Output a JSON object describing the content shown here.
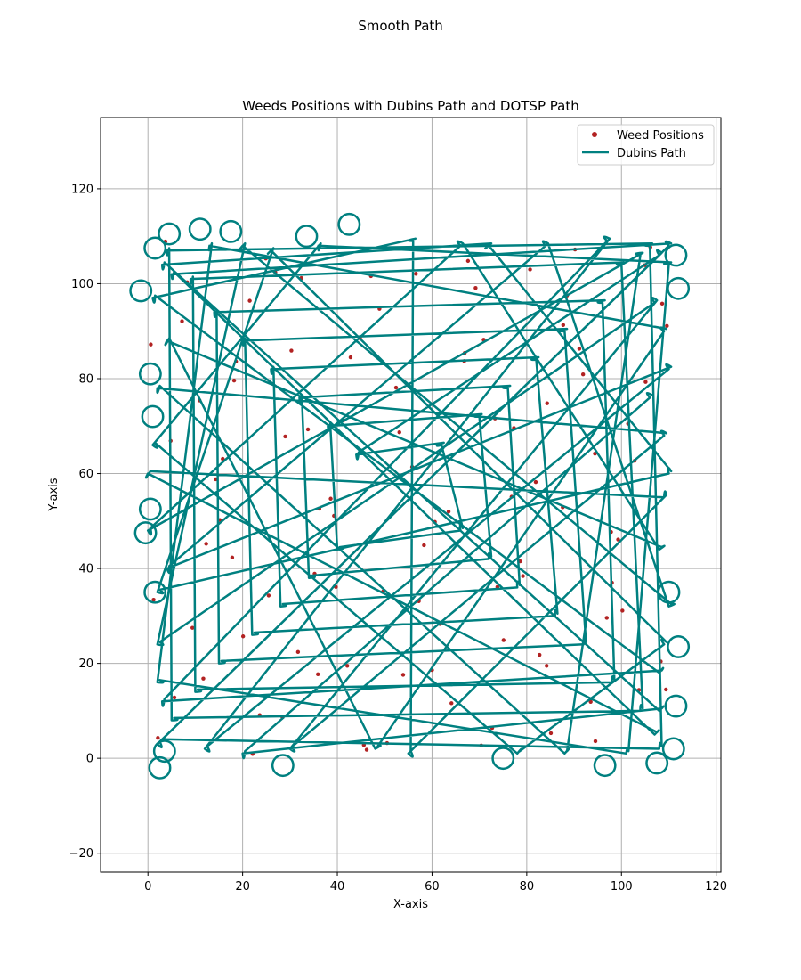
{
  "figure": {
    "suptitle": "Smooth Path"
  },
  "chart_data": {
    "type": "scatter",
    "title": "Weeds Positions with Dubins Path and DOTSP Path",
    "xlabel": "X-axis",
    "ylabel": "Y-axis",
    "xlim": [
      -10,
      121
    ],
    "ylim": [
      -24,
      135
    ],
    "xticks": [
      0,
      20,
      40,
      60,
      80,
      100,
      120
    ],
    "yticks": [
      -20,
      0,
      20,
      40,
      60,
      80,
      100,
      120
    ],
    "xtick_labels": [
      "0",
      "20",
      "40",
      "60",
      "80",
      "100",
      "120"
    ],
    "ytick_labels": [
      "−20",
      "0",
      "20",
      "40",
      "60",
      "80",
      "100",
      "120"
    ],
    "grid": true,
    "legend": {
      "placement": "top-right",
      "entries": [
        "Weed Positions",
        "Dubins Path"
      ]
    },
    "colors": {
      "weed": "#b22222",
      "path": "#008080",
      "grid": "#b0b0b0"
    },
    "series": [
      {
        "name": "Weed Positions",
        "kind": "scatter",
        "region": {
          "x": [
            0,
            110
          ],
          "y": [
            0,
            110
          ]
        },
        "points": [
          [
            2.1,
            4.3
          ],
          [
            5.6,
            12.8
          ],
          [
            9.4,
            27.5
          ],
          [
            12.3,
            45.2
          ],
          [
            15.8,
            63.1
          ],
          [
            18.2,
            79.6
          ],
          [
            21.5,
            96.4
          ],
          [
            24.9,
            105.3
          ],
          [
            28.4,
            8.7
          ],
          [
            31.7,
            22.4
          ],
          [
            35.2,
            38.9
          ],
          [
            38.6,
            54.7
          ],
          [
            41.3,
            71.2
          ],
          [
            44.8,
            88.5
          ],
          [
            47.1,
            101.6
          ],
          [
            50.5,
            3.2
          ],
          [
            53.9,
            17.6
          ],
          [
            57.2,
            33.1
          ],
          [
            60.6,
            49.8
          ],
          [
            63.4,
            66.3
          ],
          [
            66.8,
            83.7
          ],
          [
            69.2,
            99.1
          ],
          [
            72.7,
            6.4
          ],
          [
            75.1,
            24.9
          ],
          [
            78.6,
            41.5
          ],
          [
            81.9,
            58.2
          ],
          [
            84.3,
            74.8
          ],
          [
            87.7,
            91.3
          ],
          [
            90.2,
            107.2
          ],
          [
            93.5,
            11.9
          ],
          [
            96.9,
            29.6
          ],
          [
            99.3,
            46.1
          ],
          [
            102.8,
            62.7
          ],
          [
            105.1,
            79.3
          ],
          [
            108.6,
            95.8
          ],
          [
            109.4,
            14.5
          ],
          [
            3.7,
            108.9
          ],
          [
            7.2,
            92.1
          ],
          [
            10.9,
            75.4
          ],
          [
            14.3,
            58.8
          ],
          [
            17.8,
            42.3
          ],
          [
            20.1,
            25.7
          ],
          [
            23.6,
            9.1
          ],
          [
            26.9,
            102.4
          ],
          [
            30.3,
            85.9
          ],
          [
            33.8,
            69.3
          ],
          [
            36.2,
            52.6
          ],
          [
            39.7,
            36.1
          ],
          [
            42.1,
            19.5
          ],
          [
            45.6,
            2.8
          ],
          [
            48.9,
            94.7
          ],
          [
            52.4,
            78.1
          ],
          [
            55.8,
            61.4
          ],
          [
            58.3,
            44.9
          ],
          [
            61.7,
            28.3
          ],
          [
            64.1,
            11.6
          ],
          [
            67.6,
            104.8
          ],
          [
            70.9,
            88.2
          ],
          [
            73.3,
            71.6
          ],
          [
            76.8,
            55.1
          ],
          [
            79.2,
            38.4
          ],
          [
            82.7,
            21.8
          ],
          [
            85.1,
            5.3
          ],
          [
            88.5,
            97.5
          ],
          [
            91.9,
            80.9
          ],
          [
            94.4,
            64.2
          ],
          [
            97.8,
            47.7
          ],
          [
            100.2,
            31.1
          ],
          [
            103.7,
            14.4
          ],
          [
            106.1,
            107.7
          ],
          [
            109.6,
            91.1
          ],
          [
            1.2,
            33.4
          ],
          [
            4.8,
            66.9
          ],
          [
            8.3,
            100.3
          ],
          [
            11.7,
            16.8
          ],
          [
            15.2,
            50.2
          ],
          [
            18.6,
            83.6
          ],
          [
            22.1,
            0.9
          ],
          [
            25.5,
            34.3
          ],
          [
            29.0,
            67.8
          ],
          [
            32.4,
            101.2
          ],
          [
            35.9,
            17.7
          ],
          [
            39.3,
            51.1
          ],
          [
            42.8,
            84.5
          ],
          [
            46.2,
            1.8
          ],
          [
            49.7,
            35.2
          ],
          [
            53.1,
            68.7
          ],
          [
            56.6,
            102.1
          ],
          [
            60.0,
            18.6
          ],
          [
            63.5,
            52.0
          ],
          [
            66.9,
            85.4
          ],
          [
            70.4,
            2.7
          ],
          [
            73.8,
            36.1
          ],
          [
            77.3,
            69.6
          ],
          [
            80.7,
            103.0
          ],
          [
            84.2,
            19.5
          ],
          [
            87.6,
            52.9
          ],
          [
            91.1,
            86.3
          ],
          [
            94.5,
            3.6
          ],
          [
            98.0,
            37.0
          ],
          [
            101.4,
            70.5
          ],
          [
            104.9,
            103.9
          ],
          [
            108.3,
            20.4
          ],
          [
            0.6,
            87.2
          ]
        ]
      },
      {
        "name": "Dubins Path",
        "kind": "line",
        "turning_radius": 2.2,
        "waypoints": [
          [
            3,
            4
          ],
          [
            108,
            2
          ],
          [
            106,
            108
          ],
          [
            4,
            107
          ],
          [
            5,
            8
          ],
          [
            104,
            10
          ],
          [
            100,
            104
          ],
          [
            9,
            101
          ],
          [
            10,
            14
          ],
          [
            98,
            16
          ],
          [
            96,
            96
          ],
          [
            14,
            94
          ],
          [
            15,
            20
          ],
          [
            92,
            24
          ],
          [
            88,
            90
          ],
          [
            20,
            88
          ],
          [
            22,
            26
          ],
          [
            86,
            30
          ],
          [
            82,
            84
          ],
          [
            26,
            82
          ],
          [
            28,
            32
          ],
          [
            78,
            36
          ],
          [
            76,
            78
          ],
          [
            32,
            76
          ],
          [
            34,
            38
          ],
          [
            72,
            42
          ],
          [
            70,
            72
          ],
          [
            38,
            70
          ],
          [
            40,
            44
          ],
          [
            66,
            48
          ],
          [
            62,
            66
          ],
          [
            44,
            64
          ],
          [
            108,
            106
          ],
          [
            2,
            3
          ],
          [
            110,
            108
          ],
          [
            5,
            102
          ],
          [
            107,
            5
          ],
          [
            0,
            60
          ],
          [
            109,
            55
          ],
          [
            55,
            1
          ],
          [
            56,
            109
          ],
          [
            1,
            97
          ],
          [
            108,
            18
          ],
          [
            3,
            12
          ],
          [
            97,
            109
          ],
          [
            12,
            2
          ],
          [
            110,
            82
          ],
          [
            4,
            40
          ],
          [
            84,
            108
          ],
          [
            110,
            32
          ],
          [
            20,
            108
          ],
          [
            2,
            24
          ],
          [
            107,
            96
          ],
          [
            30,
            2
          ],
          [
            109,
            68
          ],
          [
            2,
            78
          ],
          [
            88,
            1
          ],
          [
            104,
            106
          ],
          [
            0,
            48
          ],
          [
            66,
            108
          ],
          [
            108,
            44
          ],
          [
            4,
            88
          ],
          [
            48,
            2
          ],
          [
            109,
            90
          ],
          [
            13,
            108
          ],
          [
            2,
            16
          ],
          [
            101,
            1
          ],
          [
            110,
            104
          ],
          [
            36,
            108
          ],
          [
            1,
            66
          ],
          [
            78,
            1
          ],
          [
            109,
            24
          ],
          [
            26,
            107
          ],
          [
            2,
            35
          ],
          [
            110,
            60
          ],
          [
            72,
            108
          ],
          [
            3,
            104
          ],
          [
            108,
            10
          ],
          [
            20,
            1
          ],
          [
            106,
            76
          ]
        ],
        "loops": [
          [
            -1.5,
            98.5
          ],
          [
            -0.5,
            47.5
          ],
          [
            0.5,
            52.5
          ],
          [
            1.5,
            35.0
          ],
          [
            1.0,
            72.0
          ],
          [
            1.5,
            107.5
          ],
          [
            4.5,
            110.5
          ],
          [
            11.0,
            111.5
          ],
          [
            17.5,
            111.0
          ],
          [
            33.5,
            110.0
          ],
          [
            42.5,
            112.5
          ],
          [
            28.5,
            -1.5
          ],
          [
            75.0,
            0.0
          ],
          [
            96.5,
            -1.5
          ],
          [
            107.5,
            -1.0
          ],
          [
            112.0,
            23.5
          ],
          [
            111.5,
            11.0
          ],
          [
            111.0,
            2.0
          ],
          [
            111.5,
            106.0
          ],
          [
            112.0,
            99.0
          ],
          [
            110.0,
            35.0
          ],
          [
            2.5,
            -2.0
          ],
          [
            3.5,
            1.5
          ],
          [
            0.5,
            81.0
          ]
        ]
      }
    ]
  }
}
